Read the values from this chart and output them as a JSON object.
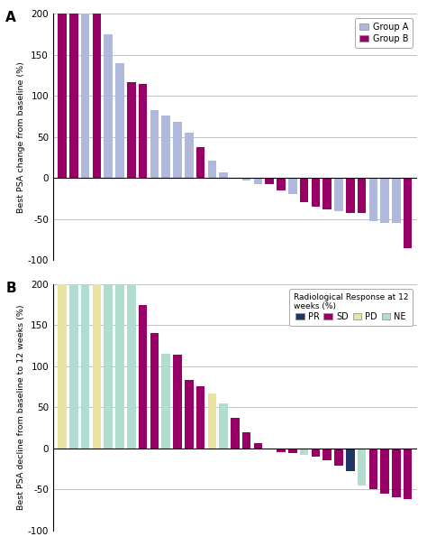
{
  "chart_a": {
    "title_label": "A",
    "ylabel": "Best PSA change from baseline (%)",
    "ylim": [
      -100,
      200
    ],
    "yticks": [
      -100,
      -50,
      0,
      50,
      100,
      150,
      200
    ],
    "bars": [
      {
        "value": 200,
        "group": "B"
      },
      {
        "value": 200,
        "group": "B"
      },
      {
        "value": 200,
        "group": "A"
      },
      {
        "value": 200,
        "group": "B"
      },
      {
        "value": 175,
        "group": "A"
      },
      {
        "value": 140,
        "group": "A"
      },
      {
        "value": 117,
        "group": "B"
      },
      {
        "value": 114,
        "group": "B"
      },
      {
        "value": 83,
        "group": "A"
      },
      {
        "value": 76,
        "group": "A"
      },
      {
        "value": 68,
        "group": "A"
      },
      {
        "value": 55,
        "group": "A"
      },
      {
        "value": 37,
        "group": "B"
      },
      {
        "value": 21,
        "group": "A"
      },
      {
        "value": 7,
        "group": "A"
      },
      {
        "value": -1,
        "group": "B"
      },
      {
        "value": -3,
        "group": "A"
      },
      {
        "value": -7,
        "group": "A"
      },
      {
        "value": -8,
        "group": "B"
      },
      {
        "value": -15,
        "group": "B"
      },
      {
        "value": -20,
        "group": "A"
      },
      {
        "value": -30,
        "group": "B"
      },
      {
        "value": -35,
        "group": "B"
      },
      {
        "value": -38,
        "group": "B"
      },
      {
        "value": -40,
        "group": "A"
      },
      {
        "value": -43,
        "group": "B"
      },
      {
        "value": -43,
        "group": "B"
      },
      {
        "value": -53,
        "group": "A"
      },
      {
        "value": -55,
        "group": "A"
      },
      {
        "value": -55,
        "group": "A"
      },
      {
        "value": -85,
        "group": "B"
      }
    ],
    "group_colors": {
      "A": "#b0b8dc",
      "B": "#990066"
    }
  },
  "chart_b": {
    "title_label": "B",
    "ylabel": "Best PSA decline from baseline to 12 weeks (%)",
    "ylim": [
      -100,
      200
    ],
    "yticks": [
      -100,
      -50,
      0,
      50,
      100,
      150,
      200
    ],
    "bars": [
      {
        "value": 200,
        "response": "PD"
      },
      {
        "value": 200,
        "response": "NE"
      },
      {
        "value": 200,
        "response": "NE"
      },
      {
        "value": 200,
        "response": "PD"
      },
      {
        "value": 200,
        "response": "NE"
      },
      {
        "value": 200,
        "response": "NE"
      },
      {
        "value": 200,
        "response": "NE"
      },
      {
        "value": 175,
        "response": "SD"
      },
      {
        "value": 140,
        "response": "SD"
      },
      {
        "value": 115,
        "response": "NE"
      },
      {
        "value": 114,
        "response": "SD"
      },
      {
        "value": 83,
        "response": "SD"
      },
      {
        "value": 76,
        "response": "SD"
      },
      {
        "value": 67,
        "response": "PD"
      },
      {
        "value": 55,
        "response": "NE"
      },
      {
        "value": 37,
        "response": "SD"
      },
      {
        "value": 20,
        "response": "SD"
      },
      {
        "value": 6,
        "response": "SD"
      },
      {
        "value": -1,
        "response": "SD"
      },
      {
        "value": -5,
        "response": "SD"
      },
      {
        "value": -6,
        "response": "SD"
      },
      {
        "value": -8,
        "response": "NE"
      },
      {
        "value": -10,
        "response": "SD"
      },
      {
        "value": -14,
        "response": "SD"
      },
      {
        "value": -21,
        "response": "SD"
      },
      {
        "value": -28,
        "response": "PR"
      },
      {
        "value": -45,
        "response": "NE"
      },
      {
        "value": -50,
        "response": "SD"
      },
      {
        "value": -55,
        "response": "SD"
      },
      {
        "value": -60,
        "response": "SD"
      },
      {
        "value": -62,
        "response": "SD"
      }
    ],
    "response_colors": {
      "PR": "#1f3864",
      "SD": "#990066",
      "PD": "#e8e4a0",
      "NE": "#b0ddd0"
    }
  }
}
